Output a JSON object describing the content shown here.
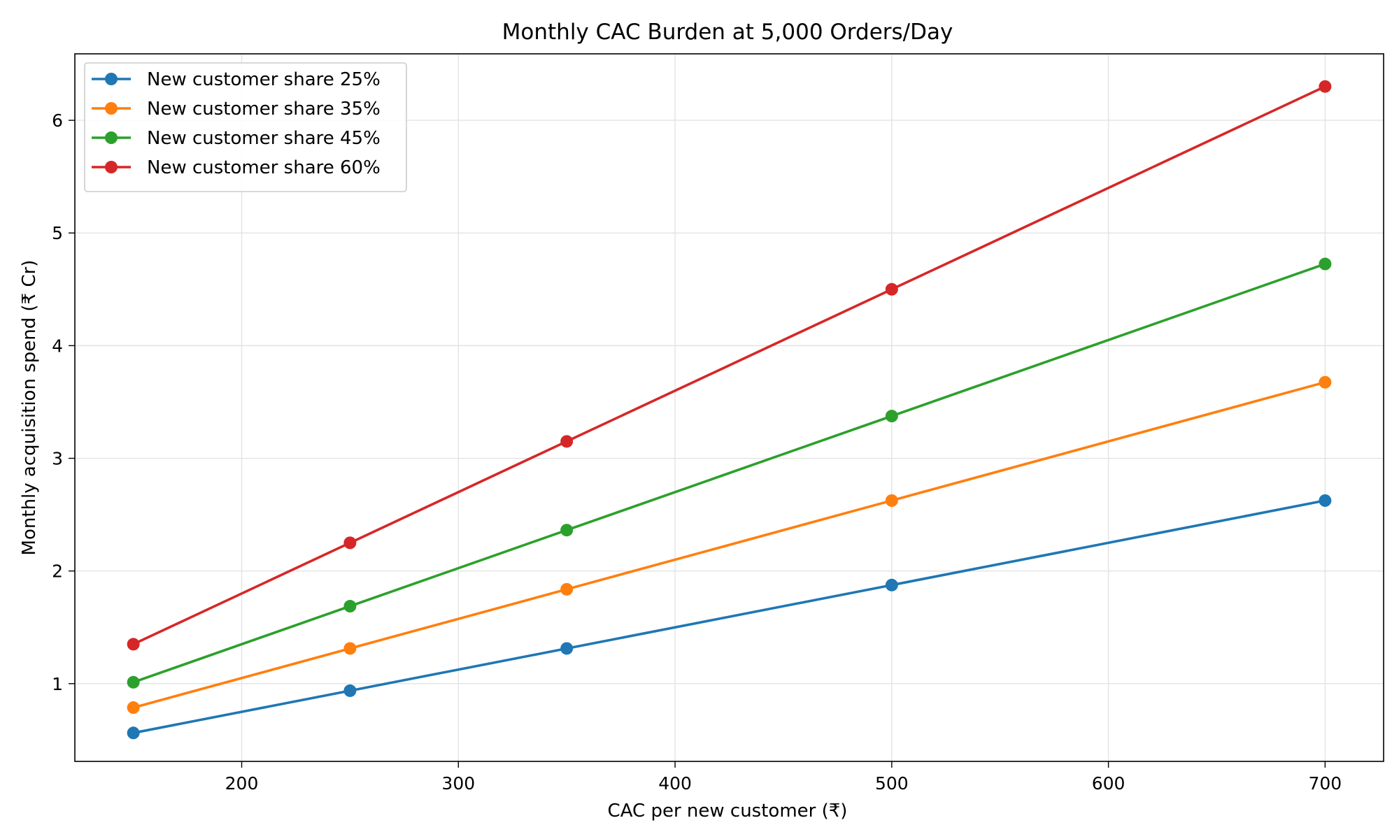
{
  "chart_data": {
    "type": "line",
    "title": "Monthly CAC Burden at 5,000 Orders/Day",
    "xlabel": "CAC per new customer (₹)",
    "ylabel": "Monthly acquisition spend (₹ Cr)",
    "x": [
      150,
      250,
      350,
      500,
      700
    ],
    "xlim": [
      123,
      727
    ],
    "ylim": [
      0.31,
      6.59
    ],
    "xticks": [
      200,
      300,
      400,
      500,
      600,
      700
    ],
    "yticks": [
      1,
      2,
      3,
      4,
      5,
      6
    ],
    "grid": true,
    "legend_position": "top-left",
    "series": [
      {
        "name": "New customer share 25%",
        "color": "#1f77b4",
        "values": [
          0.5625,
          0.9375,
          1.3125,
          1.875,
          2.625
        ]
      },
      {
        "name": "New customer share 35%",
        "color": "#ff7f0e",
        "values": [
          0.7875,
          1.3125,
          1.8375,
          2.625,
          3.675
        ]
      },
      {
        "name": "New customer share 45%",
        "color": "#2ca02c",
        "values": [
          1.0125,
          1.6875,
          2.3625,
          3.375,
          4.725
        ]
      },
      {
        "name": "New customer share 60%",
        "color": "#d62728",
        "values": [
          1.35,
          2.25,
          3.15,
          4.5,
          6.3
        ]
      }
    ]
  }
}
